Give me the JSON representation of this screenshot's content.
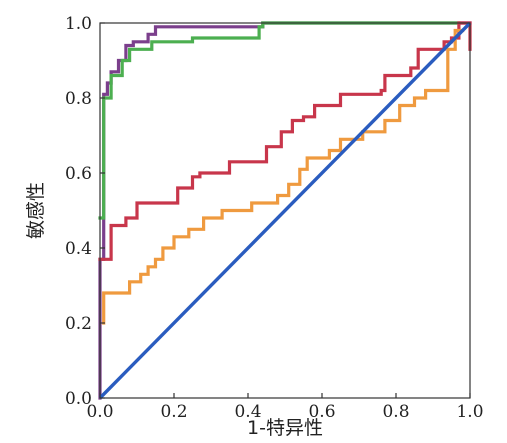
{
  "chart_data": {
    "type": "line",
    "title": "",
    "xlabel": "1-特异性",
    "ylabel": "敏感性",
    "xlim": [
      0.0,
      1.0
    ],
    "ylim": [
      0.0,
      1.0
    ],
    "xticks": [
      "0.0",
      "0.2",
      "0.4",
      "0.6",
      "0.8",
      "1.0"
    ],
    "yticks": [
      "0.0",
      "0.2",
      "0.4",
      "0.6",
      "0.8",
      "1.0"
    ],
    "grid": false,
    "legend": "none",
    "series": [
      {
        "color": "#7b3f8c",
        "step": true,
        "points": [
          [
            0,
            0
          ],
          [
            0,
            0.37
          ],
          [
            0.01,
            0.37
          ],
          [
            0.01,
            0.81
          ],
          [
            0.02,
            0.81
          ],
          [
            0.02,
            0.84
          ],
          [
            0.03,
            0.84
          ],
          [
            0.03,
            0.87
          ],
          [
            0.05,
            0.87
          ],
          [
            0.05,
            0.9
          ],
          [
            0.07,
            0.9
          ],
          [
            0.07,
            0.94
          ],
          [
            0.09,
            0.94
          ],
          [
            0.09,
            0.95
          ],
          [
            0.13,
            0.95
          ],
          [
            0.13,
            0.97
          ],
          [
            0.15,
            0.97
          ],
          [
            0.15,
            0.99
          ],
          [
            0.44,
            0.99
          ],
          [
            0.44,
            1.0
          ],
          [
            1.0,
            1.0
          ]
        ]
      },
      {
        "color": "#4caf50",
        "step": true,
        "points": [
          [
            0,
            0.48
          ],
          [
            0.01,
            0.48
          ],
          [
            0.01,
            0.8
          ],
          [
            0.03,
            0.8
          ],
          [
            0.03,
            0.86
          ],
          [
            0.06,
            0.86
          ],
          [
            0.06,
            0.9
          ],
          [
            0.08,
            0.9
          ],
          [
            0.08,
            0.93
          ],
          [
            0.14,
            0.93
          ],
          [
            0.14,
            0.95
          ],
          [
            0.25,
            0.95
          ],
          [
            0.25,
            0.96
          ],
          [
            0.43,
            0.96
          ],
          [
            0.43,
            0.99
          ],
          [
            0.44,
            0.99
          ],
          [
            0.44,
            1.0
          ],
          [
            0.97,
            1.0
          ]
        ]
      },
      {
        "color": "#c8364b",
        "step": true,
        "points": [
          [
            0,
            0.37
          ],
          [
            0.03,
            0.37
          ],
          [
            0.03,
            0.46
          ],
          [
            0.07,
            0.46
          ],
          [
            0.07,
            0.48
          ],
          [
            0.1,
            0.48
          ],
          [
            0.1,
            0.52
          ],
          [
            0.21,
            0.52
          ],
          [
            0.21,
            0.56
          ],
          [
            0.25,
            0.56
          ],
          [
            0.25,
            0.59
          ],
          [
            0.27,
            0.59
          ],
          [
            0.27,
            0.6
          ],
          [
            0.35,
            0.6
          ],
          [
            0.35,
            0.63
          ],
          [
            0.45,
            0.63
          ],
          [
            0.45,
            0.67
          ],
          [
            0.49,
            0.67
          ],
          [
            0.49,
            0.71
          ],
          [
            0.52,
            0.71
          ],
          [
            0.52,
            0.74
          ],
          [
            0.55,
            0.74
          ],
          [
            0.55,
            0.75
          ],
          [
            0.58,
            0.75
          ],
          [
            0.58,
            0.78
          ],
          [
            0.65,
            0.78
          ],
          [
            0.65,
            0.81
          ],
          [
            0.76,
            0.81
          ],
          [
            0.76,
            0.82
          ],
          [
            0.77,
            0.82
          ],
          [
            0.77,
            0.86
          ],
          [
            0.84,
            0.86
          ],
          [
            0.84,
            0.88
          ],
          [
            0.86,
            0.88
          ],
          [
            0.86,
            0.93
          ],
          [
            0.93,
            0.93
          ],
          [
            0.93,
            0.95
          ],
          [
            0.95,
            0.95
          ],
          [
            0.95,
            0.96
          ],
          [
            0.97,
            0.96
          ],
          [
            0.97,
            1.0
          ],
          [
            1.0,
            1.0
          ],
          [
            1.0,
            0.93
          ]
        ]
      },
      {
        "color": "#ef9a3f",
        "step": true,
        "points": [
          [
            0.01,
            0.2
          ],
          [
            0.01,
            0.28
          ],
          [
            0.08,
            0.28
          ],
          [
            0.08,
            0.31
          ],
          [
            0.11,
            0.31
          ],
          [
            0.11,
            0.33
          ],
          [
            0.13,
            0.33
          ],
          [
            0.13,
            0.35
          ],
          [
            0.15,
            0.35
          ],
          [
            0.15,
            0.37
          ],
          [
            0.17,
            0.37
          ],
          [
            0.17,
            0.4
          ],
          [
            0.2,
            0.4
          ],
          [
            0.2,
            0.43
          ],
          [
            0.24,
            0.43
          ],
          [
            0.24,
            0.45
          ],
          [
            0.28,
            0.45
          ],
          [
            0.28,
            0.48
          ],
          [
            0.33,
            0.48
          ],
          [
            0.33,
            0.5
          ],
          [
            0.41,
            0.5
          ],
          [
            0.41,
            0.52
          ],
          [
            0.48,
            0.52
          ],
          [
            0.48,
            0.54
          ],
          [
            0.51,
            0.54
          ],
          [
            0.51,
            0.57
          ],
          [
            0.54,
            0.57
          ],
          [
            0.54,
            0.61
          ],
          [
            0.56,
            0.61
          ],
          [
            0.56,
            0.64
          ],
          [
            0.62,
            0.64
          ],
          [
            0.62,
            0.66
          ],
          [
            0.65,
            0.66
          ],
          [
            0.65,
            0.69
          ],
          [
            0.71,
            0.69
          ],
          [
            0.71,
            0.71
          ],
          [
            0.77,
            0.71
          ],
          [
            0.77,
            0.74
          ],
          [
            0.81,
            0.74
          ],
          [
            0.81,
            0.78
          ],
          [
            0.85,
            0.78
          ],
          [
            0.85,
            0.8
          ],
          [
            0.88,
            0.8
          ],
          [
            0.88,
            0.82
          ],
          [
            0.94,
            0.82
          ],
          [
            0.94,
            0.93
          ],
          [
            0.96,
            0.93
          ],
          [
            0.96,
            0.98
          ],
          [
            0.98,
            0.98
          ]
        ]
      },
      {
        "color": "#2a5cbf",
        "step": false,
        "points": [
          [
            0,
            0
          ],
          [
            1,
            1
          ]
        ]
      }
    ]
  }
}
